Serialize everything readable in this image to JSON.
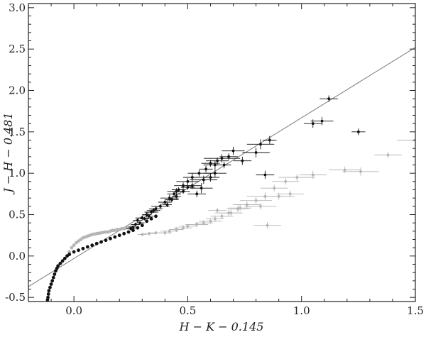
{
  "chart_data": {
    "type": "scatter",
    "xlabel": "H − K − 0.145",
    "ylabel": "J − H − 0.481",
    "xlim": [
      -0.2,
      1.5
    ],
    "ylim": [
      -0.55,
      3.05
    ],
    "x_ticks": [
      "0.0",
      "0.5",
      "1.0",
      "1.5"
    ],
    "x_tick_values": [
      0.0,
      0.5,
      1.0,
      1.5
    ],
    "y_ticks": [
      "-0.5",
      "0.0",
      "0.5",
      "1.0",
      "1.5",
      "2.0",
      "2.5",
      "3.0"
    ],
    "y_tick_values": [
      -0.5,
      0.0,
      0.5,
      1.0,
      1.5,
      2.0,
      2.5,
      3.0
    ],
    "grid": false,
    "colors": {
      "primary": "#111111",
      "secondary": "#b5b5b5",
      "line": "#777777",
      "frame": "#222222"
    },
    "reference_line": {
      "slope": 1.7,
      "intercept": -0.03
    },
    "series": [
      {
        "key": "locus",
        "marker": "dot",
        "color": "#111111",
        "x": [
          -0.02,
          -0.03,
          -0.04,
          -0.05,
          -0.06,
          -0.07,
          -0.075,
          -0.08,
          -0.085,
          -0.09,
          -0.095,
          -0.1,
          -0.105,
          -0.11,
          -0.112,
          -0.114,
          -0.116,
          -0.118,
          -0.12,
          -0.12,
          -0.12,
          0.0,
          0.02,
          0.04,
          0.06,
          0.08,
          0.1,
          0.12,
          0.14,
          0.16,
          0.18,
          0.2,
          0.22,
          0.24,
          0.26,
          0.28,
          0.3,
          0.32,
          0.34,
          0.36
        ],
        "y": [
          0.02,
          0.0,
          -0.03,
          -0.06,
          -0.09,
          -0.12,
          -0.15,
          -0.18,
          -0.22,
          -0.26,
          -0.3,
          -0.34,
          -0.38,
          -0.42,
          -0.46,
          -0.5,
          -0.53,
          -0.56,
          -0.6,
          -0.65,
          -0.7,
          0.05,
          0.07,
          0.09,
          0.11,
          0.13,
          0.15,
          0.17,
          0.19,
          0.21,
          0.23,
          0.25,
          0.27,
          0.29,
          0.31,
          0.34,
          0.37,
          0.42,
          0.45,
          0.48
        ]
      },
      {
        "key": "locus-gray",
        "marker": "dot",
        "color": "#b5b5b5",
        "x": [
          -0.03,
          -0.02,
          -0.01,
          0.0,
          0.01,
          0.02,
          0.03,
          0.04,
          0.05,
          0.06,
          0.07,
          0.08,
          0.09,
          0.1,
          0.11,
          0.12,
          0.13,
          0.14,
          0.15,
          0.16,
          0.17,
          0.18,
          0.19,
          0.2,
          0.21,
          0.22,
          0.23,
          0.24,
          0.25
        ],
        "y": [
          0.0,
          0.05,
          0.1,
          0.13,
          0.16,
          0.18,
          0.2,
          0.22,
          0.23,
          0.24,
          0.25,
          0.26,
          0.265,
          0.27,
          0.275,
          0.28,
          0.285,
          0.29,
          0.29,
          0.3,
          0.31,
          0.31,
          0.32,
          0.32,
          0.33,
          0.33,
          0.34,
          0.34,
          0.35
        ]
      },
      {
        "key": "sources-black",
        "marker": "errorbar",
        "color": "#111111",
        "x": [
          1.12,
          1.25,
          1.05,
          1.09,
          0.86,
          0.82,
          0.7,
          0.68,
          0.65,
          0.63,
          0.6,
          0.62,
          0.58,
          0.55,
          0.52,
          0.5,
          0.48,
          0.46,
          0.45,
          0.44,
          0.42,
          0.4,
          0.38,
          0.36,
          0.34,
          0.32,
          0.3,
          0.28,
          0.56,
          0.54,
          0.66,
          0.74,
          0.8,
          0.84,
          0.62,
          0.6,
          0.57,
          0.52,
          0.5,
          0.48,
          0.45,
          0.43,
          0.41,
          0.35,
          0.33,
          0.31,
          0.29,
          0.27,
          0.26,
          0.25
        ],
        "y": [
          1.9,
          1.5,
          1.6,
          1.63,
          1.4,
          1.35,
          1.27,
          1.2,
          1.18,
          1.15,
          1.12,
          1.1,
          1.05,
          1.0,
          0.95,
          0.9,
          0.85,
          0.8,
          0.78,
          0.75,
          0.7,
          0.65,
          0.6,
          0.57,
          0.53,
          0.5,
          0.46,
          0.43,
          0.82,
          0.75,
          1.1,
          1.15,
          1.25,
          0.98,
          1.0,
          0.95,
          0.92,
          0.85,
          0.83,
          0.78,
          0.72,
          0.68,
          0.62,
          0.55,
          0.48,
          0.45,
          0.4,
          0.38,
          0.35,
          0.33
        ],
        "xerr": [
          0.04,
          0.03,
          0.04,
          0.05,
          0.03,
          0.06,
          0.05,
          0.04,
          0.08,
          0.05,
          0.04,
          0.05,
          0.03,
          0.05,
          0.04,
          0.05,
          0.04,
          0.03,
          0.04,
          0.03,
          0.04,
          0.03,
          0.04,
          0.03,
          0.03,
          0.02,
          0.03,
          0.02,
          0.05,
          0.04,
          0.03,
          0.04,
          0.06,
          0.04,
          0.05,
          0.04,
          0.06,
          0.04,
          0.03,
          0.03,
          0.02,
          0.03,
          0.02,
          0.03,
          0.02,
          0.02,
          0.02,
          0.02,
          0.02,
          0.02
        ],
        "yerr": [
          0.04,
          0.04,
          0.05,
          0.05,
          0.05,
          0.06,
          0.05,
          0.04,
          0.05,
          0.04,
          0.04,
          0.05,
          0.04,
          0.04,
          0.05,
          0.04,
          0.04,
          0.03,
          0.04,
          0.03,
          0.04,
          0.03,
          0.03,
          0.03,
          0.03,
          0.03,
          0.03,
          0.03,
          0.06,
          0.04,
          0.04,
          0.05,
          0.06,
          0.05,
          0.05,
          0.05,
          0.05,
          0.04,
          0.03,
          0.03,
          0.03,
          0.03,
          0.03,
          0.03,
          0.03,
          0.02,
          0.02,
          0.02,
          0.02,
          0.02
        ]
      },
      {
        "key": "sources-gray",
        "marker": "errorbar",
        "color": "#b5b5b5",
        "x": [
          1.5,
          1.38,
          1.26,
          1.19,
          1.05,
          0.98,
          0.93,
          0.88,
          0.84,
          0.8,
          0.76,
          0.72,
          0.68,
          0.65,
          0.62,
          0.6,
          0.57,
          0.54,
          0.5,
          0.48,
          0.45,
          0.42,
          0.4,
          0.36,
          0.33,
          0.3,
          0.85,
          0.9,
          0.95,
          0.82,
          0.73,
          0.69,
          0.63
        ],
        "y": [
          1.4,
          1.22,
          1.02,
          1.04,
          0.98,
          0.95,
          0.9,
          0.82,
          0.72,
          0.67,
          0.62,
          0.57,
          0.52,
          0.48,
          0.45,
          0.42,
          0.4,
          0.38,
          0.36,
          0.34,
          0.32,
          0.3,
          0.28,
          0.28,
          0.27,
          0.26,
          0.37,
          0.72,
          0.75,
          0.6,
          0.58,
          0.52,
          0.55
        ],
        "xerr": [
          0.08,
          0.06,
          0.08,
          0.07,
          0.06,
          0.08,
          0.06,
          0.06,
          0.08,
          0.07,
          0.06,
          0.05,
          0.06,
          0.05,
          0.04,
          0.05,
          0.04,
          0.05,
          0.04,
          0.04,
          0.03,
          0.04,
          0.03,
          0.03,
          0.03,
          0.02,
          0.06,
          0.07,
          0.06,
          0.07,
          0.05,
          0.05,
          0.04
        ],
        "yerr": [
          0.05,
          0.04,
          0.05,
          0.04,
          0.05,
          0.04,
          0.04,
          0.04,
          0.05,
          0.04,
          0.04,
          0.04,
          0.04,
          0.03,
          0.04,
          0.03,
          0.03,
          0.03,
          0.03,
          0.03,
          0.03,
          0.03,
          0.03,
          0.02,
          0.02,
          0.02,
          0.04,
          0.04,
          0.04,
          0.04,
          0.04,
          0.04,
          0.03
        ]
      }
    ]
  }
}
